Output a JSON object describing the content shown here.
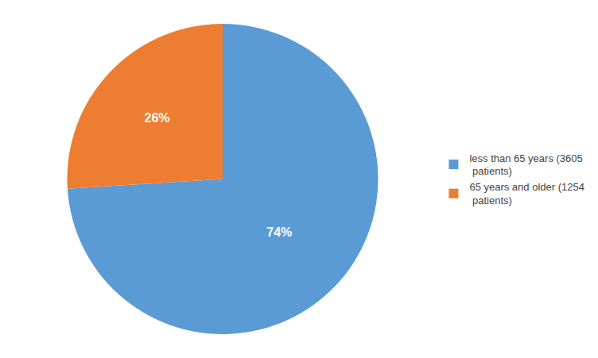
{
  "chart_data": {
    "type": "pie",
    "categories": [
      "less than 65 years (3605\n patients)",
      "65 years and older (1254\n patients)"
    ],
    "values": [
      74,
      26
    ],
    "value_labels": [
      "74%",
      "26%"
    ],
    "colors": [
      "#5B9BD5",
      "#ED7D31"
    ],
    "data_labels": true,
    "legend": "right"
  }
}
